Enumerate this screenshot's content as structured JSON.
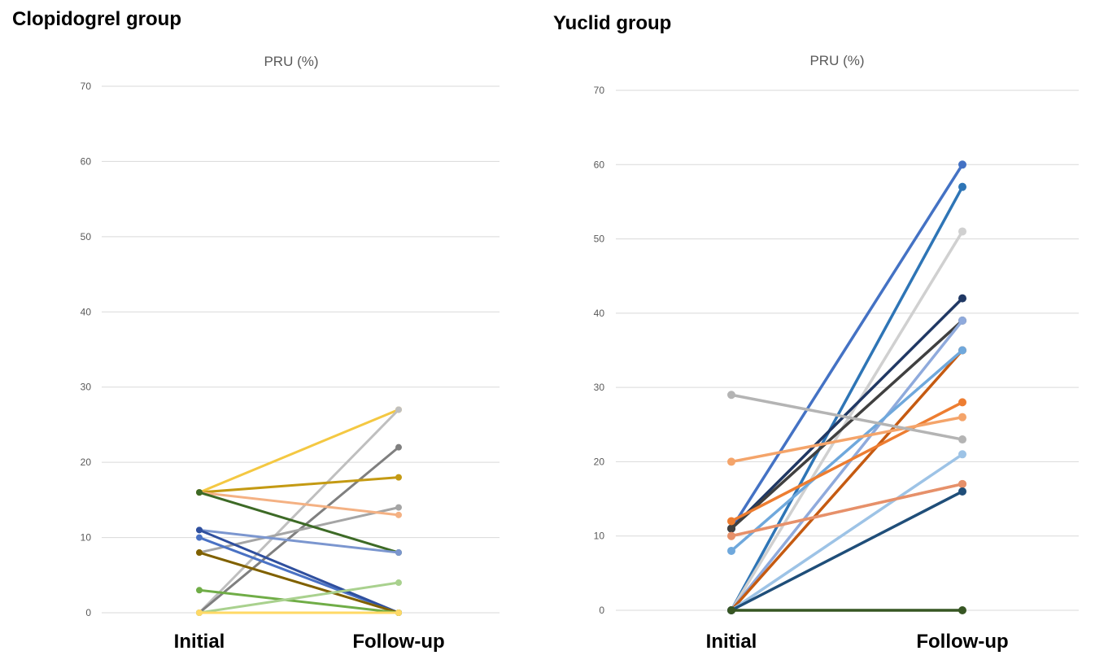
{
  "titles": {
    "left": "Clopidogrel group",
    "right": "Yuclid group"
  },
  "chart_data": [
    {
      "type": "line",
      "title": "PRU (%)",
      "categories": [
        "Initial",
        "Follow-up"
      ],
      "ylim": [
        0,
        70
      ],
      "yticks": [
        0,
        10,
        20,
        30,
        40,
        50,
        60,
        70
      ],
      "grid": true,
      "series": [
        {
          "values": [
            16,
            27
          ],
          "color": "#f4c842"
        },
        {
          "values": [
            0,
            27
          ],
          "color": "#bfbfbf"
        },
        {
          "values": [
            0,
            22
          ],
          "color": "#7f7f7f"
        },
        {
          "values": [
            16,
            18
          ],
          "color": "#c49a13"
        },
        {
          "values": [
            8,
            14
          ],
          "color": "#a5a5a5"
        },
        {
          "values": [
            16,
            13
          ],
          "color": "#f4b183"
        },
        {
          "values": [
            16,
            8
          ],
          "color": "#3d6a26"
        },
        {
          "values": [
            11,
            8
          ],
          "color": "#7b96cf"
        },
        {
          "values": [
            10,
            0
          ],
          "color": "#4a72c4"
        },
        {
          "values": [
            11,
            0
          ],
          "color": "#2f4f9e"
        },
        {
          "values": [
            8,
            0
          ],
          "color": "#f7d66e"
        },
        {
          "values": [
            8,
            0
          ],
          "color": "#7f6000"
        },
        {
          "values": [
            3,
            0
          ],
          "color": "#70ad47"
        },
        {
          "values": [
            0,
            4
          ],
          "color": "#a9d18e"
        },
        {
          "values": [
            0,
            0
          ],
          "color": "#ffd966"
        }
      ]
    },
    {
      "type": "line",
      "title": "PRU (%)",
      "categories": [
        "Initial",
        "Follow-up"
      ],
      "ylim": [
        0,
        70
      ],
      "yticks": [
        0,
        10,
        20,
        30,
        40,
        50,
        60,
        70
      ],
      "grid": true,
      "series": [
        {
          "values": [
            11,
            60
          ],
          "color": "#4472c4"
        },
        {
          "values": [
            0,
            57
          ],
          "color": "#2e75b6"
        },
        {
          "values": [
            0,
            51
          ],
          "color": "#d0d0d0"
        },
        {
          "values": [
            11,
            42
          ],
          "color": "#203864"
        },
        {
          "values": [
            11,
            39
          ],
          "color": "#404040"
        },
        {
          "values": [
            0,
            39
          ],
          "color": "#8faadc"
        },
        {
          "values": [
            0,
            35
          ],
          "color": "#c55a11"
        },
        {
          "values": [
            8,
            35
          ],
          "color": "#6fa8dc"
        },
        {
          "values": [
            12,
            28
          ],
          "color": "#ed7d31"
        },
        {
          "values": [
            20,
            26
          ],
          "color": "#f4a46a"
        },
        {
          "values": [
            29,
            23
          ],
          "color": "#b4b4b4"
        },
        {
          "values": [
            0,
            21
          ],
          "color": "#9dc3e6"
        },
        {
          "values": [
            10,
            17
          ],
          "color": "#f4b183"
        },
        {
          "values": [
            10,
            17
          ],
          "color": "#e6906a"
        },
        {
          "values": [
            0,
            16
          ],
          "color": "#1f4e79"
        },
        {
          "values": [
            0,
            0
          ],
          "color": "#375623"
        }
      ]
    }
  ]
}
